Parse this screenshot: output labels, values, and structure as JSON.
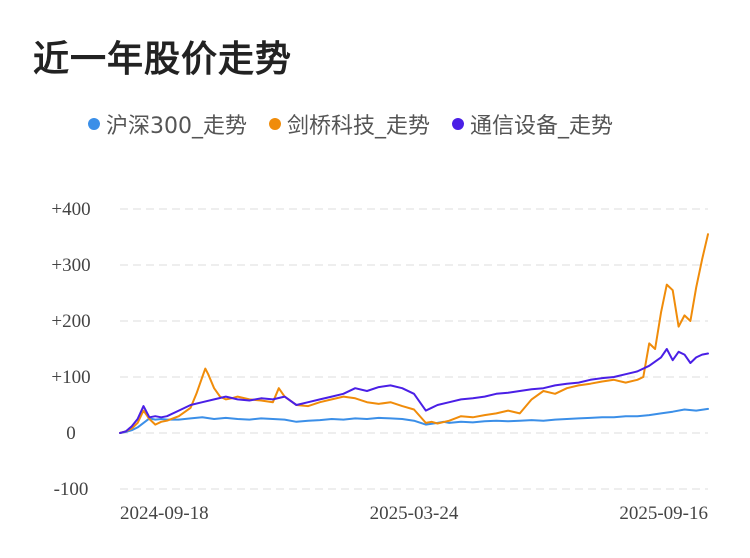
{
  "title": "近一年股价走势",
  "colors": {
    "hs300": "#3b8fe8",
    "jianqiao": "#f08c0a",
    "tongxin": "#4a1fe6",
    "grid": "#e8e8e8"
  },
  "legend": [
    {
      "label": "沪深300_走势",
      "color": "#3b8fe8"
    },
    {
      "label": "剑桥科技_走势",
      "color": "#f08c0a"
    },
    {
      "label": "通信设备_走势",
      "color": "#4a1fe6"
    }
  ],
  "chart_data": {
    "type": "line",
    "title": "近一年股价走势",
    "y_tick_labels": [
      "+400",
      "+300",
      "+200",
      "+100",
      "0",
      "-100"
    ],
    "x_tick_labels": [
      "2024-09-18",
      "2025-03-24",
      "2025-09-16"
    ],
    "ylim": [
      -100,
      400
    ],
    "xlim": [
      0,
      100
    ],
    "grid": true,
    "legend_position": "top",
    "series": [
      {
        "name": "沪深300_走势",
        "color": "#3b8fe8",
        "x": [
          0,
          1,
          2,
          3,
          4,
          5,
          6,
          7,
          8,
          10,
          12,
          14,
          16,
          18,
          20,
          22,
          24,
          26,
          28,
          30,
          32,
          34,
          36,
          38,
          40,
          42,
          44,
          46,
          48,
          50,
          52,
          54,
          55,
          56,
          58,
          60,
          62,
          64,
          66,
          68,
          70,
          72,
          74,
          76,
          78,
          80,
          82,
          84,
          86,
          88,
          90,
          92,
          94,
          96,
          98,
          100
        ],
        "values": [
          0,
          2,
          5,
          10,
          18,
          26,
          24,
          25,
          24,
          24,
          26,
          28,
          25,
          27,
          25,
          24,
          26,
          25,
          24,
          20,
          22,
          23,
          25,
          24,
          26,
          25,
          27,
          26,
          25,
          22,
          15,
          18,
          20,
          18,
          20,
          19,
          21,
          22,
          21,
          22,
          23,
          22,
          24,
          25,
          26,
          27,
          28,
          28,
          30,
          30,
          32,
          35,
          38,
          42,
          40,
          43
        ]
      },
      {
        "name": "剑桥科技_走势",
        "color": "#f08c0a",
        "x": [
          0,
          1,
          2,
          3,
          4,
          5,
          6,
          7,
          8,
          10,
          12,
          13,
          14,
          14.5,
          15,
          16,
          17,
          18,
          19,
          20,
          22,
          24,
          26,
          27,
          28,
          30,
          32,
          34,
          36,
          38,
          40,
          42,
          44,
          46,
          48,
          50,
          52,
          53,
          54,
          56,
          58,
          60,
          62,
          64,
          66,
          68,
          70,
          72,
          74,
          76,
          78,
          80,
          82,
          84,
          86,
          88,
          89,
          90,
          91,
          92,
          93,
          94,
          95,
          96,
          97,
          98,
          99,
          100
        ],
        "values": [
          0,
          3,
          8,
          18,
          40,
          25,
          15,
          20,
          22,
          30,
          45,
          70,
          100,
          115,
          105,
          80,
          65,
          60,
          62,
          65,
          60,
          58,
          55,
          80,
          65,
          50,
          48,
          55,
          60,
          65,
          62,
          55,
          52,
          55,
          48,
          42,
          18,
          20,
          17,
          22,
          30,
          28,
          32,
          35,
          40,
          35,
          60,
          75,
          70,
          80,
          85,
          88,
          92,
          95,
          90,
          95,
          100,
          160,
          150,
          215,
          265,
          255,
          190,
          210,
          200,
          260,
          310,
          355
        ]
      },
      {
        "name": "通信设备_走势",
        "color": "#4a1fe6",
        "x": [
          0,
          1,
          2,
          3,
          4,
          5,
          6,
          7,
          8,
          10,
          12,
          14,
          16,
          18,
          20,
          22,
          24,
          26,
          28,
          30,
          32,
          34,
          36,
          38,
          40,
          42,
          44,
          46,
          48,
          50,
          52,
          53,
          54,
          56,
          58,
          60,
          62,
          64,
          66,
          68,
          70,
          72,
          74,
          76,
          78,
          80,
          82,
          84,
          86,
          88,
          90,
          92,
          93,
          94,
          95,
          96,
          97,
          98,
          99,
          100
        ],
        "values": [
          0,
          3,
          12,
          25,
          48,
          28,
          30,
          28,
          30,
          40,
          50,
          55,
          60,
          65,
          60,
          58,
          62,
          60,
          65,
          50,
          55,
          60,
          65,
          70,
          80,
          75,
          82,
          85,
          80,
          70,
          40,
          45,
          50,
          55,
          60,
          62,
          65,
          70,
          72,
          75,
          78,
          80,
          85,
          88,
          90,
          95,
          98,
          100,
          105,
          110,
          120,
          135,
          150,
          130,
          145,
          140,
          125,
          135,
          140,
          142
        ]
      }
    ]
  }
}
